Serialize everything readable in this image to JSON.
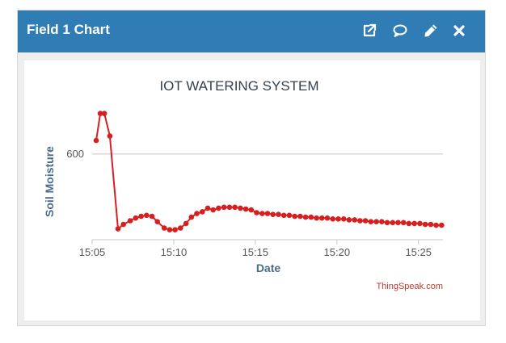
{
  "header": {
    "title": "Field 1 Chart",
    "icons": [
      "external-link-icon",
      "comment-icon",
      "pencil-icon",
      "close-icon"
    ]
  },
  "colors": {
    "header": "#2f7db4",
    "series": "#d62020",
    "credit": "#c0392b"
  },
  "chart_data": {
    "type": "line",
    "title": "IOT WATERING SYSTEM",
    "xlabel": "Date",
    "ylabel": "Soil Moisture",
    "credit": "ThingSpeak.com",
    "x_ticks": [
      "15:05",
      "15:10",
      "15:15",
      "15:20",
      "15:25"
    ],
    "y_ticks": [
      600
    ],
    "x_range": [
      "15:05:00",
      "15:26:30"
    ],
    "y_range": [
      505,
      650
    ],
    "grid": true,
    "legend": "none",
    "series": [
      {
        "x": [
          "15:05:15",
          "15:05:30",
          "15:05:45",
          "15:06:05",
          "15:06:35",
          "15:06:55",
          "15:07:20",
          "15:07:40",
          "15:08:00",
          "15:08:20",
          "15:08:40",
          "15:09:00",
          "15:09:25",
          "15:09:45",
          "15:10:05",
          "15:10:25",
          "15:10:45",
          "15:11:05",
          "15:11:25",
          "15:11:45",
          "15:12:05",
          "15:12:25",
          "15:12:45",
          "15:13:05",
          "15:13:25",
          "15:13:45",
          "15:14:05",
          "15:14:25",
          "15:14:45",
          "15:15:05",
          "15:15:25",
          "15:15:45",
          "15:16:05",
          "15:16:25",
          "15:16:45",
          "15:17:05",
          "15:17:25",
          "15:17:45",
          "15:18:05",
          "15:18:25",
          "15:18:45",
          "15:19:05",
          "15:19:25",
          "15:19:45",
          "15:20:05",
          "15:20:25",
          "15:20:45",
          "15:21:05",
          "15:21:25",
          "15:21:45",
          "15:22:05",
          "15:22:25",
          "15:22:45",
          "15:23:05",
          "15:23:25",
          "15:23:45",
          "15:24:05",
          "15:24:25",
          "15:24:45",
          "15:25:05",
          "15:25:25",
          "15:25:45",
          "15:26:05",
          "15:26:25"
        ],
        "values": [
          615,
          645,
          645,
          620,
          517,
          522,
          526,
          529,
          531,
          532,
          531,
          525,
          518,
          516,
          516,
          518,
          523,
          530,
          534,
          536,
          540,
          538,
          540,
          541,
          541,
          541,
          540,
          539,
          538,
          535,
          534,
          534,
          533,
          533,
          532,
          532,
          531,
          531,
          530,
          530,
          529,
          529,
          529,
          528,
          528,
          528,
          527,
          527,
          526,
          526,
          525,
          525,
          525,
          524,
          524,
          524,
          524,
          523,
          523,
          523,
          522,
          522,
          521,
          521
        ]
      }
    ]
  }
}
